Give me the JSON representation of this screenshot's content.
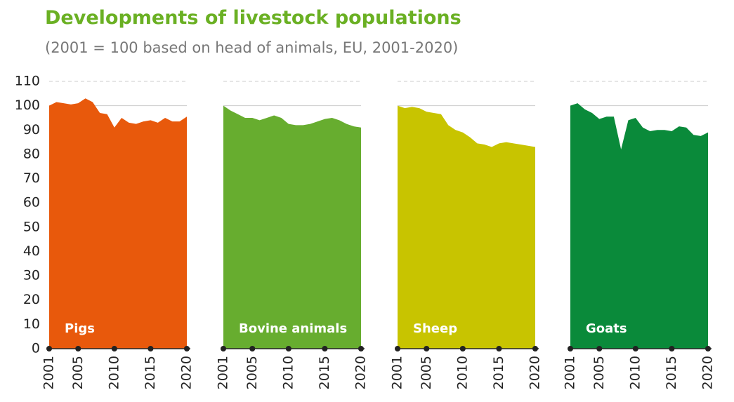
{
  "title": "Developments of livestock populations",
  "subtitle": "(2001 = 100 based on head of animals, EU, 2001-2020)",
  "chart_data": [
    {
      "type": "area",
      "label": "Pigs",
      "color": "#e8590c",
      "x": [
        2001,
        2002,
        2003,
        2004,
        2005,
        2006,
        2007,
        2008,
        2009,
        2010,
        2011,
        2012,
        2013,
        2014,
        2015,
        2016,
        2017,
        2018,
        2019,
        2020
      ],
      "values": [
        100,
        101.5,
        101,
        100.5,
        101,
        103,
        101.5,
        97,
        96.5,
        91,
        95,
        93,
        92.5,
        93.5,
        94,
        93,
        95,
        93.5,
        93.5,
        95.5
      ],
      "xlim": [
        2001,
        2020
      ],
      "xticks": [
        2001,
        2005,
        2010,
        2015,
        2020
      ],
      "ylim": [
        0,
        110
      ],
      "yticks": [
        0,
        10,
        20,
        30,
        40,
        50,
        60,
        70,
        80,
        90,
        100,
        110
      ]
    },
    {
      "type": "area",
      "label": "Bovine animals",
      "color": "#67ad2f",
      "x": [
        2001,
        2002,
        2003,
        2004,
        2005,
        2006,
        2007,
        2008,
        2009,
        2010,
        2011,
        2012,
        2013,
        2014,
        2015,
        2016,
        2017,
        2018,
        2019,
        2020
      ],
      "values": [
        100,
        98,
        96.5,
        95,
        95,
        94,
        95,
        96,
        95,
        92.5,
        92,
        92,
        92.5,
        93.5,
        94.5,
        95,
        94,
        92.5,
        91.5,
        91
      ],
      "xlim": [
        2001,
        2020
      ],
      "xticks": [
        2001,
        2005,
        2010,
        2015,
        2020
      ],
      "ylim": [
        0,
        110
      ]
    },
    {
      "type": "area",
      "label": "Sheep",
      "color": "#c8c400",
      "x": [
        2001,
        2002,
        2003,
        2004,
        2005,
        2006,
        2007,
        2008,
        2009,
        2010,
        2011,
        2012,
        2013,
        2014,
        2015,
        2016,
        2017,
        2018,
        2019,
        2020
      ],
      "values": [
        100,
        99,
        99.5,
        99,
        97.5,
        97,
        96.5,
        92,
        90,
        89,
        87,
        84.5,
        84,
        83,
        84.5,
        85,
        84.5,
        84,
        83.5,
        83
      ],
      "xlim": [
        2001,
        2020
      ],
      "xticks": [
        2001,
        2005,
        2010,
        2015,
        2020
      ],
      "ylim": [
        0,
        110
      ]
    },
    {
      "type": "area",
      "label": "Goats",
      "color": "#0a8a3a",
      "x": [
        2001,
        2002,
        2003,
        2004,
        2005,
        2006,
        2007,
        2008,
        2009,
        2010,
        2011,
        2012,
        2013,
        2014,
        2015,
        2016,
        2017,
        2018,
        2019,
        2020
      ],
      "values": [
        100,
        101,
        98.5,
        97,
        94.5,
        95.5,
        95.5,
        82,
        94,
        95,
        91,
        89.5,
        90,
        90,
        89.5,
        91.5,
        91,
        88,
        87.5,
        89
      ],
      "xlim": [
        2001,
        2020
      ],
      "xticks": [
        2001,
        2005,
        2010,
        2015,
        2020
      ],
      "ylim": [
        0,
        110
      ]
    }
  ]
}
